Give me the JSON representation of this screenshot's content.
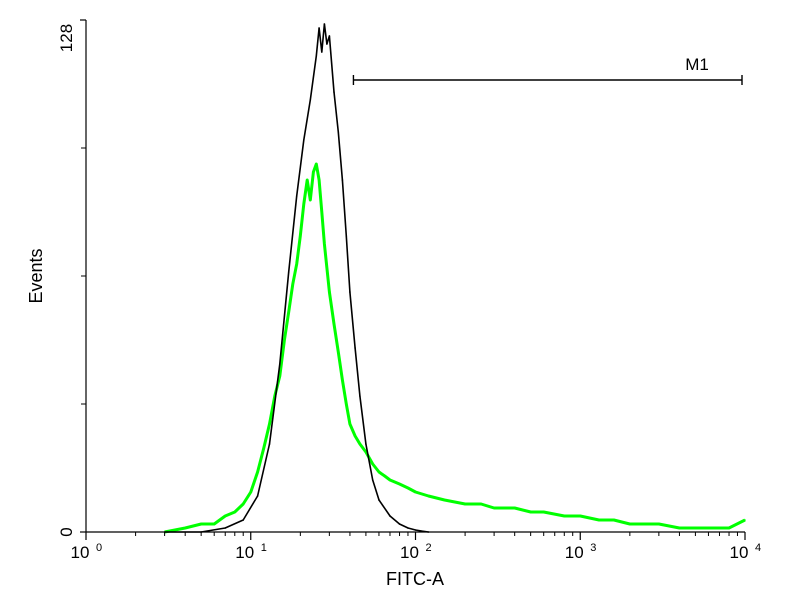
{
  "chart_data": {
    "type": "area",
    "title": "",
    "xlabel": "FITC-A",
    "ylabel": "Events",
    "x_scale": "log",
    "xlim": [
      1,
      10000
    ],
    "ylim": [
      0,
      128
    ],
    "x_ticks": [
      {
        "value": 1,
        "base": "10",
        "exp": "0"
      },
      {
        "value": 10,
        "base": "10",
        "exp": "1"
      },
      {
        "value": 100,
        "base": "10",
        "exp": "2"
      },
      {
        "value": 1000,
        "base": "10",
        "exp": "3"
      },
      {
        "value": 10000,
        "base": "10",
        "exp": "4"
      }
    ],
    "y_tick_labels": [
      {
        "value": 0,
        "label": "0"
      },
      {
        "value": 128,
        "label": "128"
      }
    ],
    "y_minor_ticks": [
      32,
      64,
      96
    ],
    "grid": false,
    "marker": {
      "label": "M1",
      "x_start": 42,
      "x_end": 10000,
      "y": 113
    },
    "series": [
      {
        "color": "#000000",
        "x": [
          3,
          5,
          7,
          9,
          11,
          13,
          15,
          17,
          19,
          21,
          23,
          25,
          26,
          27,
          28,
          29,
          30,
          32,
          34,
          36,
          38,
          40,
          43,
          46,
          50,
          55,
          60,
          70,
          80,
          90,
          100,
          110,
          120
        ],
        "y": [
          0,
          0,
          1,
          3,
          9,
          22,
          42,
          65,
          84,
          98,
          108,
          119,
          126,
          120,
          127,
          122,
          124,
          110,
          100,
          88,
          74,
          60,
          46,
          34,
          22,
          13,
          8,
          4,
          2,
          1,
          0.5,
          0.2,
          0
        ]
      },
      {
        "color": "#00ff00",
        "x": [
          3,
          4,
          5,
          6,
          7,
          8,
          9,
          10,
          11,
          12,
          13,
          14,
          15,
          16,
          17,
          18,
          19,
          20,
          21,
          22,
          23,
          24,
          25,
          26,
          27,
          28,
          29,
          30,
          32,
          34,
          36,
          38,
          40,
          43,
          46,
          50,
          55,
          60,
          65,
          70,
          80,
          90,
          100,
          120,
          150,
          200,
          250,
          300,
          400,
          500,
          600,
          800,
          1000,
          1300,
          1600,
          2000,
          2500,
          3000,
          4000,
          5000,
          6000,
          8000,
          10000
        ],
        "y": [
          0,
          1,
          2,
          2,
          4,
          5,
          7,
          10,
          15,
          21,
          27,
          34,
          39,
          48,
          55,
          62,
          67,
          74,
          82,
          88,
          83,
          90,
          92,
          88,
          80,
          72,
          66,
          60,
          52,
          45,
          38,
          32,
          27,
          24,
          22,
          20,
          17,
          15,
          14,
          13,
          12,
          11,
          10,
          9,
          8,
          7,
          7,
          6,
          6,
          5,
          5,
          4,
          4,
          3,
          3,
          2,
          2,
          2,
          1,
          1,
          1,
          1,
          3
        ]
      }
    ]
  }
}
